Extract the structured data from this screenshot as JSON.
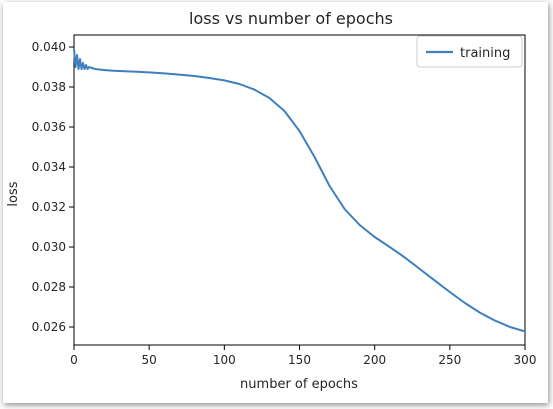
{
  "chart_data": {
    "type": "line",
    "title": "loss vs number of epochs",
    "xlabel": "number of epochs",
    "ylabel": "loss",
    "xlim": [
      0,
      300
    ],
    "ylim": [
      0.0251,
      0.0406
    ],
    "xticks": [
      0,
      50,
      100,
      150,
      200,
      250,
      300
    ],
    "xtick_labels": [
      "0",
      "50",
      "100",
      "150",
      "200",
      "250",
      "300"
    ],
    "yticks": [
      0.026,
      0.028,
      0.03,
      0.032,
      0.034,
      0.036,
      0.038,
      0.04
    ],
    "ytick_labels": [
      "0.026",
      "0.028",
      "0.030",
      "0.032",
      "0.034",
      "0.036",
      "0.038",
      "0.040"
    ],
    "grid": false,
    "legend_position": "top-right",
    "series": [
      {
        "name": "training",
        "color": "#3d7fbf",
        "x": [
          0,
          1,
          2,
          3,
          4,
          5,
          6,
          7,
          8,
          9,
          10,
          12,
          14,
          16,
          20,
          25,
          30,
          40,
          50,
          60,
          70,
          80,
          90,
          100,
          110,
          120,
          130,
          140,
          150,
          160,
          170,
          180,
          190,
          200,
          210,
          220,
          230,
          240,
          250,
          260,
          270,
          280,
          290,
          300
        ],
        "y": [
          0.0399,
          0.039,
          0.0396,
          0.0389,
          0.0394,
          0.0389,
          0.0392,
          0.0389,
          0.0391,
          0.0389,
          0.039,
          0.03895,
          0.0389,
          0.03888,
          0.03885,
          0.03882,
          0.0388,
          0.03877,
          0.03873,
          0.03868,
          0.03862,
          0.03855,
          0.03845,
          0.03833,
          0.03815,
          0.03787,
          0.03745,
          0.0368,
          0.0358,
          0.0345,
          0.03305,
          0.0319,
          0.0311,
          0.0305,
          0.03,
          0.02948,
          0.0289,
          0.02832,
          0.02775,
          0.0272,
          0.02672,
          0.02632,
          0.026,
          0.02578
        ]
      }
    ]
  }
}
